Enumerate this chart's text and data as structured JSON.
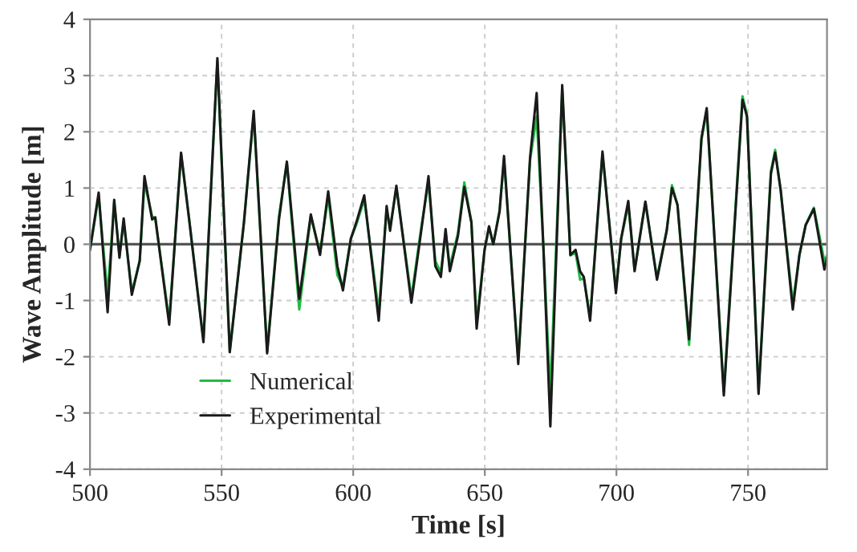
{
  "chart_data": {
    "type": "line",
    "xlabel": "Time [s]",
    "ylabel": "Wave Amplitude [m]",
    "xlim": [
      500,
      780
    ],
    "xticks": [
      500,
      550,
      600,
      650,
      700,
      750
    ],
    "ylim": [
      -4,
      4
    ],
    "yticks": [
      -4,
      -3,
      -2,
      -1,
      0,
      1,
      2,
      3,
      4
    ],
    "grid": true,
    "legend": "bottom left",
    "marker": "none",
    "line_style": "solid",
    "ref_lines": [
      {
        "axis": "y",
        "value": 0,
        "label": null,
        "color": "#555555"
      }
    ],
    "series": [
      {
        "name": "Numerical",
        "color": "#22bb44",
        "x": [
          500,
          503.3,
          506.7,
          509.2,
          511.2,
          512.8,
          515.9,
          518.9,
          520.7,
          523.6,
          524.8,
          530.1,
          534.6,
          537.8,
          543.1,
          548.4,
          553.1,
          558.5,
          562.2,
          567.3,
          571.8,
          574.8,
          579.5,
          583.9,
          587.4,
          590.5,
          594.0,
          596.1,
          599.1,
          601.2,
          604.2,
          609.7,
          612.7,
          614.0,
          616.4,
          622.1,
          626.0,
          628.6,
          631.2,
          633.3,
          635.1,
          636.7,
          639.8,
          642.2,
          644.9,
          646.9,
          649.9,
          651.6,
          653.2,
          655.6,
          657.3,
          662.7,
          667.2,
          669.7,
          672.3,
          674.9,
          679.4,
          682.5,
          684.5,
          686.2,
          687.6,
          690.0,
          694.7,
          699.8,
          701.8,
          704.5,
          706.9,
          711.0,
          715.4,
          719.1,
          721.1,
          723.2,
          727.6,
          732.3,
          734.3,
          740.8,
          747.9,
          749.6,
          754.0,
          758.7,
          760.3,
          762.4,
          767.0,
          769.5,
          771.9,
          775.0,
          779.0,
          780
        ],
        "values": [
          -0.1,
          0.85,
          -0.9,
          0.75,
          -0.2,
          0.4,
          -0.85,
          -0.3,
          1.1,
          0.5,
          0.45,
          -1.35,
          1.6,
          0.4,
          -1.7,
          3.25,
          -1.9,
          0.4,
          2.3,
          -1.9,
          0.5,
          1.45,
          -1.16,
          0.5,
          -0.15,
          0.85,
          -0.55,
          -0.75,
          0.1,
          0.35,
          0.8,
          -1.2,
          0.6,
          0.3,
          1.0,
          -0.95,
          0.35,
          1.1,
          -0.3,
          -0.5,
          0.2,
          -0.4,
          0.2,
          1.1,
          0.4,
          -1.4,
          -0.1,
          0.3,
          0.0,
          0.6,
          1.5,
          -2.05,
          1.5,
          2.27,
          -0.1,
          -2.66,
          2.75,
          -0.2,
          -0.15,
          -0.63,
          -0.6,
          -1.3,
          1.6,
          -0.8,
          0.1,
          0.7,
          -0.45,
          0.75,
          -0.6,
          0.25,
          1.05,
          0.7,
          -1.79,
          1.85,
          2.38,
          -2.62,
          2.63,
          2.3,
          -2.6,
          1.3,
          1.68,
          0.95,
          -1.05,
          -0.2,
          0.35,
          0.65,
          -0.3,
          -0.2
        ]
      },
      {
        "name": "Experimental",
        "color": "#1a1a1a",
        "x": [
          500,
          503.3,
          506.7,
          509.2,
          511.2,
          512.8,
          515.9,
          518.9,
          520.7,
          523.6,
          524.8,
          530.1,
          534.6,
          537.8,
          543.1,
          548.4,
          553.1,
          558.5,
          562.2,
          567.3,
          571.8,
          574.8,
          579.5,
          583.9,
          587.4,
          590.5,
          594.0,
          596.1,
          599.1,
          601.2,
          604.2,
          609.7,
          612.7,
          614.0,
          616.4,
          622.1,
          626.0,
          628.6,
          631.2,
          633.3,
          635.1,
          636.7,
          639.8,
          642.2,
          644.9,
          646.9,
          649.9,
          651.6,
          653.2,
          655.6,
          657.3,
          662.7,
          667.2,
          669.7,
          672.3,
          674.9,
          679.4,
          682.5,
          684.5,
          686.2,
          687.6,
          690.0,
          694.7,
          699.8,
          701.8,
          704.5,
          706.9,
          711.0,
          715.4,
          719.1,
          721.1,
          723.2,
          727.6,
          732.3,
          734.3,
          740.8,
          747.9,
          749.6,
          754.0,
          758.7,
          760.3,
          762.4,
          767.0,
          769.5,
          771.9,
          775.0,
          779.0,
          780
        ],
        "values": [
          -0.1,
          0.92,
          -1.21,
          0.79,
          -0.24,
          0.46,
          -0.9,
          -0.29,
          1.21,
          0.44,
          0.48,
          -1.43,
          1.63,
          0.39,
          -1.74,
          3.31,
          -1.92,
          0.39,
          2.37,
          -1.94,
          0.44,
          1.47,
          -0.97,
          0.53,
          -0.19,
          0.94,
          -0.39,
          -0.82,
          0.1,
          0.39,
          0.87,
          -1.36,
          0.68,
          0.24,
          1.04,
          -1.04,
          0.29,
          1.21,
          -0.39,
          -0.58,
          0.27,
          -0.48,
          0.15,
          1.02,
          0.39,
          -1.5,
          -0.1,
          0.32,
          0.0,
          0.58,
          1.57,
          -2.13,
          1.55,
          2.69,
          -0.1,
          -3.24,
          2.83,
          -0.19,
          -0.1,
          -0.48,
          -0.58,
          -1.36,
          1.65,
          -0.87,
          0.1,
          0.77,
          -0.48,
          0.76,
          -0.63,
          0.24,
          1.0,
          0.7,
          -1.69,
          1.89,
          2.42,
          -2.69,
          2.57,
          2.27,
          -2.66,
          1.26,
          1.63,
          0.97,
          -1.16,
          -0.19,
          0.34,
          0.63,
          -0.45,
          -0.24
        ]
      }
    ]
  }
}
